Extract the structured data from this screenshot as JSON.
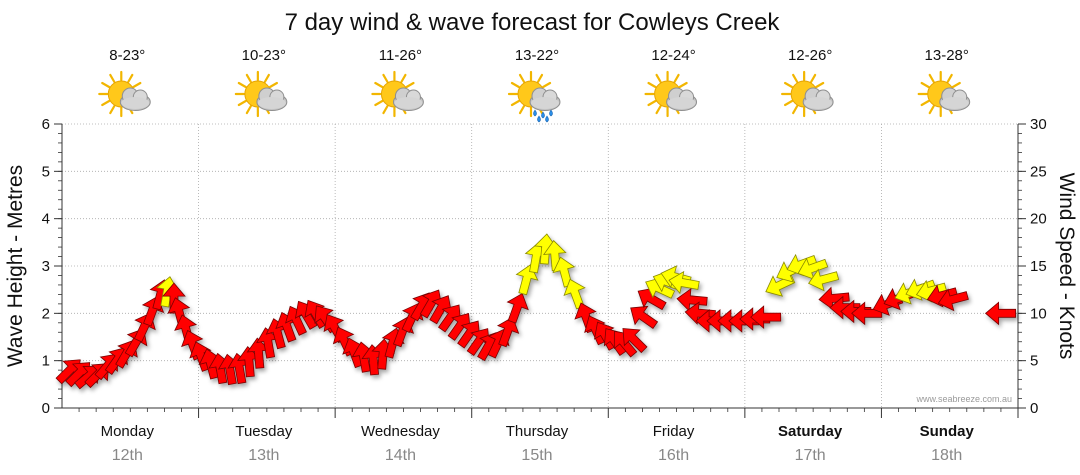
{
  "chart_data": {
    "type": "line",
    "title": "7 day wind & wave forecast for Cowleys Creek",
    "ylabel": "Wave Height - Metres",
    "ylabel_right": "Wind Speed - Knots",
    "ylim": [
      0,
      6
    ],
    "ylim_right": [
      0,
      30
    ],
    "yticks": [
      "0",
      "1",
      "2",
      "3",
      "4",
      "5",
      "6"
    ],
    "yticks_right": [
      "0",
      "5",
      "10",
      "15",
      "20",
      "25",
      "30"
    ],
    "watermark": "www.seabreeze.com.au",
    "days": [
      {
        "name": "Monday",
        "date": "12th",
        "temp": "8-23°",
        "icon": "sun-cloud-icon",
        "bold": false
      },
      {
        "name": "Tuesday",
        "date": "13th",
        "temp": "10-23°",
        "icon": "sun-cloud-icon",
        "bold": false
      },
      {
        "name": "Wednesday",
        "date": "14th",
        "temp": "11-26°",
        "icon": "sun-cloud-icon",
        "bold": false
      },
      {
        "name": "Thursday",
        "date": "15th",
        "temp": "13-22°",
        "icon": "sun-cloud-rain-icon",
        "bold": false
      },
      {
        "name": "Friday",
        "date": "16th",
        "temp": "12-24°",
        "icon": "sun-cloud-icon",
        "bold": false
      },
      {
        "name": "Saturday",
        "date": "17th",
        "temp": "12-26°",
        "icon": "sun-cloud-icon",
        "bold": true
      },
      {
        "name": "Sunday",
        "date": "18th",
        "temp": "13-28°",
        "icon": "sun-cloud-icon",
        "bold": true
      }
    ],
    "series": [
      {
        "name": "wind",
        "unit": "knots",
        "note": "hourly-ish samples, day index is fractional day from Monday 00:00; dir = degrees wind comes from",
        "points": [
          {
            "t": 0.05,
            "v": 3.9,
            "dir": 225
          },
          {
            "t": 0.12,
            "v": 3.6,
            "dir": 225
          },
          {
            "t": 0.19,
            "v": 3.3,
            "dir": 230
          },
          {
            "t": 0.26,
            "v": 3.5,
            "dir": 225
          },
          {
            "t": 0.33,
            "v": 4.4,
            "dir": 220
          },
          {
            "t": 0.4,
            "v": 5.0,
            "dir": 215
          },
          {
            "t": 0.47,
            "v": 5.7,
            "dir": 210
          },
          {
            "t": 0.54,
            "v": 6.9,
            "dir": 210
          },
          {
            "t": 0.6,
            "v": 8.5,
            "dir": 205
          },
          {
            "t": 0.66,
            "v": 10.2,
            "dir": 200
          },
          {
            "t": 0.72,
            "v": 11.9,
            "dir": 195
          },
          {
            "t": 0.77,
            "v": 12.2,
            "dir": 190
          },
          {
            "t": 0.82,
            "v": 11.5,
            "dir": 180
          },
          {
            "t": 0.86,
            "v": 10.0,
            "dir": 165
          },
          {
            "t": 0.91,
            "v": 8.2,
            "dir": 165
          },
          {
            "t": 0.96,
            "v": 6.6,
            "dir": 160
          },
          {
            "t": 1.02,
            "v": 5.4,
            "dir": 160
          },
          {
            "t": 1.09,
            "v": 4.6,
            "dir": 165
          },
          {
            "t": 1.16,
            "v": 4.1,
            "dir": 170
          },
          {
            "t": 1.23,
            "v": 4.0,
            "dir": 170
          },
          {
            "t": 1.3,
            "v": 4.1,
            "dir": 170
          },
          {
            "t": 1.37,
            "v": 4.8,
            "dir": 175
          },
          {
            "t": 1.44,
            "v": 5.7,
            "dir": 175
          },
          {
            "t": 1.51,
            "v": 6.8,
            "dir": 170
          },
          {
            "t": 1.58,
            "v": 7.8,
            "dir": 165
          },
          {
            "t": 1.65,
            "v": 8.5,
            "dir": 160
          },
          {
            "t": 1.72,
            "v": 9.2,
            "dir": 155
          },
          {
            "t": 1.79,
            "v": 9.8,
            "dir": 150
          },
          {
            "t": 1.86,
            "v": 9.9,
            "dir": 150
          },
          {
            "t": 1.93,
            "v": 9.4,
            "dir": 145
          },
          {
            "t": 2.0,
            "v": 8.4,
            "dir": 150
          },
          {
            "t": 2.07,
            "v": 7.0,
            "dir": 155
          },
          {
            "t": 2.14,
            "v": 5.8,
            "dir": 160
          },
          {
            "t": 2.21,
            "v": 5.3,
            "dir": 170
          },
          {
            "t": 2.28,
            "v": 5.0,
            "dir": 175
          },
          {
            "t": 2.35,
            "v": 5.6,
            "dir": 185
          },
          {
            "t": 2.42,
            "v": 6.8,
            "dir": 195
          },
          {
            "t": 2.49,
            "v": 8.0,
            "dir": 200
          },
          {
            "t": 2.56,
            "v": 9.5,
            "dir": 205
          },
          {
            "t": 2.63,
            "v": 10.7,
            "dir": 210
          },
          {
            "t": 2.7,
            "v": 11.0,
            "dir": 210
          },
          {
            "t": 2.77,
            "v": 10.4,
            "dir": 210
          },
          {
            "t": 2.84,
            "v": 9.5,
            "dir": 215
          },
          {
            "t": 2.91,
            "v": 8.6,
            "dir": 215
          },
          {
            "t": 2.98,
            "v": 7.8,
            "dir": 215
          },
          {
            "t": 3.05,
            "v": 7.0,
            "dir": 215
          },
          {
            "t": 3.12,
            "v": 6.5,
            "dir": 210
          },
          {
            "t": 3.19,
            "v": 6.8,
            "dir": 205
          },
          {
            "t": 3.26,
            "v": 8.0,
            "dir": 200
          },
          {
            "t": 3.33,
            "v": 10.5,
            "dir": 200
          },
          {
            "t": 3.4,
            "v": 13.5,
            "dir": 195
          },
          {
            "t": 3.47,
            "v": 15.8,
            "dir": 190
          },
          {
            "t": 3.54,
            "v": 16.7,
            "dir": 185
          },
          {
            "t": 3.61,
            "v": 16.0,
            "dir": 175
          },
          {
            "t": 3.68,
            "v": 14.3,
            "dir": 165
          },
          {
            "t": 3.76,
            "v": 12.0,
            "dir": 160
          },
          {
            "t": 3.84,
            "v": 9.5,
            "dir": 160
          },
          {
            "t": 3.91,
            "v": 8.2,
            "dir": 155
          },
          {
            "t": 3.98,
            "v": 7.6,
            "dir": 150
          },
          {
            "t": 4.05,
            "v": 7.0,
            "dir": 145
          },
          {
            "t": 4.12,
            "v": 6.8,
            "dir": 140
          },
          {
            "t": 4.19,
            "v": 7.2,
            "dir": 135
          },
          {
            "t": 4.26,
            "v": 9.6,
            "dir": 125
          },
          {
            "t": 4.32,
            "v": 11.5,
            "dir": 120
          },
          {
            "t": 4.38,
            "v": 12.6,
            "dir": 115
          },
          {
            "t": 4.44,
            "v": 13.3,
            "dir": 110
          },
          {
            "t": 4.5,
            "v": 13.8,
            "dir": 105
          },
          {
            "t": 4.56,
            "v": 13.2,
            "dir": 100
          },
          {
            "t": 4.62,
            "v": 11.4,
            "dir": 95
          },
          {
            "t": 4.68,
            "v": 10.0,
            "dir": 95
          },
          {
            "t": 4.76,
            "v": 9.2,
            "dir": 90
          },
          {
            "t": 4.84,
            "v": 9.2,
            "dir": 90
          },
          {
            "t": 4.92,
            "v": 9.2,
            "dir": 90
          },
          {
            "t": 5.0,
            "v": 9.2,
            "dir": 90
          },
          {
            "t": 5.08,
            "v": 9.4,
            "dir": 90
          },
          {
            "t": 5.16,
            "v": 9.6,
            "dir": 90
          },
          {
            "t": 5.26,
            "v": 13.0,
            "dir": 65
          },
          {
            "t": 5.34,
            "v": 14.5,
            "dir": 65
          },
          {
            "t": 5.42,
            "v": 15.2,
            "dir": 70
          },
          {
            "t": 5.5,
            "v": 14.8,
            "dir": 70
          },
          {
            "t": 5.58,
            "v": 13.6,
            "dir": 75
          },
          {
            "t": 5.66,
            "v": 11.6,
            "dir": 85
          },
          {
            "t": 5.74,
            "v": 10.6,
            "dir": 90
          },
          {
            "t": 5.82,
            "v": 10.2,
            "dir": 90
          },
          {
            "t": 5.9,
            "v": 10.0,
            "dir": 90
          },
          {
            "t": 6.05,
            "v": 11.0,
            "dir": 70
          },
          {
            "t": 6.13,
            "v": 11.6,
            "dir": 70
          },
          {
            "t": 6.21,
            "v": 12.2,
            "dir": 70
          },
          {
            "t": 6.29,
            "v": 12.6,
            "dir": 70
          },
          {
            "t": 6.37,
            "v": 12.4,
            "dir": 75
          },
          {
            "t": 6.45,
            "v": 11.9,
            "dir": 75
          },
          {
            "t": 6.53,
            "v": 11.5,
            "dir": 75
          },
          {
            "t": 6.88,
            "v": 10.0,
            "dir": 90
          }
        ]
      }
    ]
  }
}
